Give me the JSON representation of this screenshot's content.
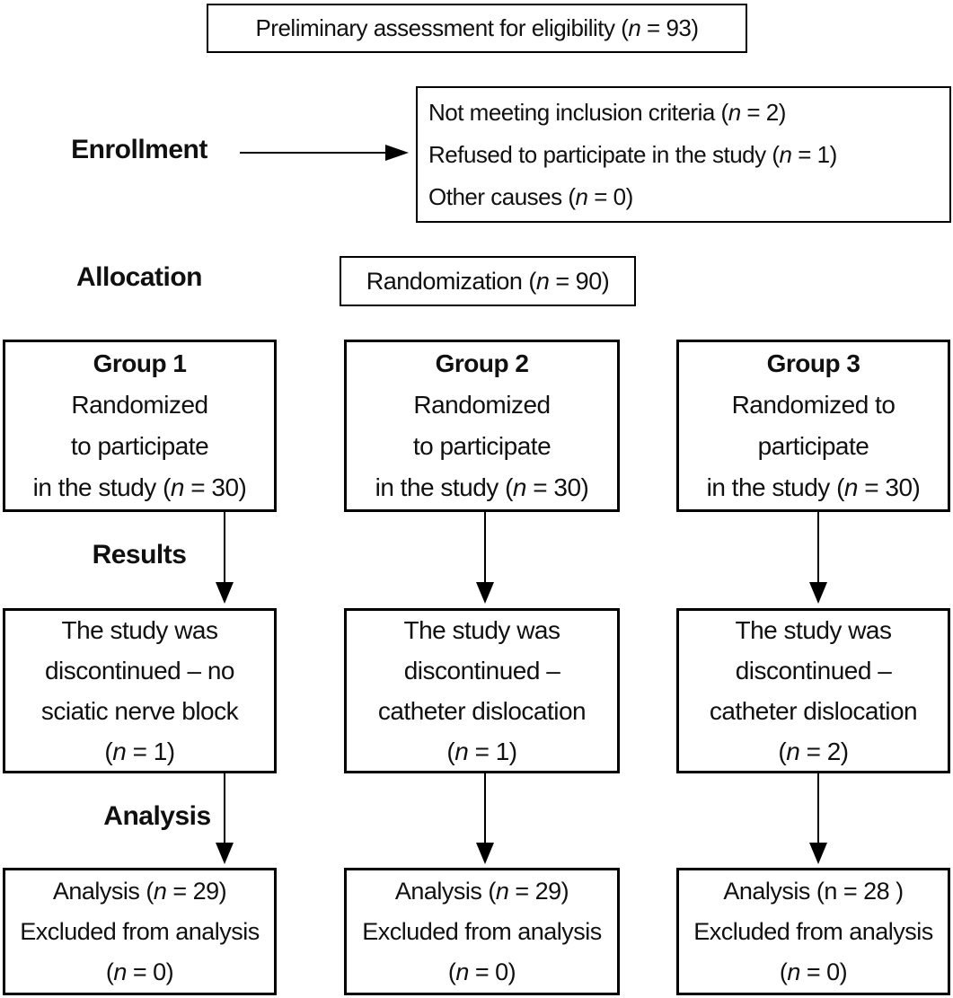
{
  "flowchart": {
    "stage_labels": {
      "enrollment": "Enrollment",
      "allocation": "Allocation",
      "results": "Results",
      "analysis": "Analysis"
    },
    "eligibility_box": {
      "lines": [
        [
          {
            "t": "Preliminary assessment for eligibility ("
          },
          {
            "t": "n",
            "i": true
          },
          {
            "t": " = 93)"
          }
        ]
      ]
    },
    "exclusion_box": {
      "lines": [
        [
          {
            "t": "Not meeting inclusion criteria ("
          },
          {
            "t": "n",
            "i": true
          },
          {
            "t": " = 2)"
          }
        ],
        [
          {
            "t": "Refused to participate in the study ("
          },
          {
            "t": "n",
            "i": true
          },
          {
            "t": " = 1)"
          }
        ],
        [
          {
            "t": "Other causes ("
          },
          {
            "t": "n",
            "i": true
          },
          {
            "t": " = 0)"
          }
        ]
      ]
    },
    "randomization_box": {
      "lines": [
        [
          {
            "t": "Randomization ("
          },
          {
            "t": "n",
            "i": true
          },
          {
            "t": " = 90)"
          }
        ]
      ]
    },
    "group_boxes": [
      {
        "lines": [
          [
            {
              "t": "Group 1",
              "b": true
            }
          ],
          [
            {
              "t": "Randomized"
            }
          ],
          [
            {
              "t": "to participate"
            }
          ],
          [
            {
              "t": "in the study ("
            },
            {
              "t": "n",
              "i": true
            },
            {
              "t": " = 30)"
            }
          ]
        ]
      },
      {
        "lines": [
          [
            {
              "t": "Group 2",
              "b": true
            }
          ],
          [
            {
              "t": "Randomized"
            }
          ],
          [
            {
              "t": "to participate"
            }
          ],
          [
            {
              "t": "in the study ("
            },
            {
              "t": "n",
              "i": true
            },
            {
              "t": " = 30)"
            }
          ]
        ]
      },
      {
        "lines": [
          [
            {
              "t": "Group 3",
              "b": true
            }
          ],
          [
            {
              "t": "Randomized to"
            }
          ],
          [
            {
              "t": "participate"
            }
          ],
          [
            {
              "t": "in the study ("
            },
            {
              "t": "n",
              "i": true
            },
            {
              "t": " = 30)"
            }
          ]
        ]
      }
    ],
    "result_boxes": [
      {
        "lines": [
          [
            {
              "t": "The study was"
            }
          ],
          [
            {
              "t": "discontinued – no"
            }
          ],
          [
            {
              "t": "sciatic nerve block"
            }
          ],
          [
            {
              "t": "("
            },
            {
              "t": "n",
              "i": true
            },
            {
              "t": " = 1)"
            }
          ]
        ]
      },
      {
        "lines": [
          [
            {
              "t": "The study was"
            }
          ],
          [
            {
              "t": "discontinued –"
            }
          ],
          [
            {
              "t": "catheter dislocation"
            }
          ],
          [
            {
              "t": "("
            },
            {
              "t": "n",
              "i": true
            },
            {
              "t": " = 1)"
            }
          ]
        ]
      },
      {
        "lines": [
          [
            {
              "t": "The study was"
            }
          ],
          [
            {
              "t": "discontinued –"
            }
          ],
          [
            {
              "t": "catheter dislocation"
            }
          ],
          [
            {
              "t": "("
            },
            {
              "t": "n",
              "i": true
            },
            {
              "t": " = 2)"
            }
          ]
        ]
      }
    ],
    "analysis_boxes": [
      {
        "lines": [
          [
            {
              "t": "Analysis ("
            },
            {
              "t": "n",
              "i": true
            },
            {
              "t": " = 29)"
            }
          ],
          [
            {
              "t": "Excluded from analysis"
            }
          ],
          [
            {
              "t": "("
            },
            {
              "t": "n",
              "i": true
            },
            {
              "t": " = 0)"
            }
          ]
        ]
      },
      {
        "lines": [
          [
            {
              "t": "Analysis ("
            },
            {
              "t": "n",
              "i": true
            },
            {
              "t": " = 29)"
            }
          ],
          [
            {
              "t": "Excluded from analysis"
            }
          ],
          [
            {
              "t": "("
            },
            {
              "t": "n",
              "i": true
            },
            {
              "t": " = 0)"
            }
          ]
        ]
      },
      {
        "lines": [
          [
            {
              "t": "Analysis (n = 28 )"
            }
          ],
          [
            {
              "t": "Excluded from analysis"
            }
          ],
          [
            {
              "t": "("
            },
            {
              "t": "n",
              "i": true
            },
            {
              "t": " = 0)"
            }
          ]
        ]
      }
    ],
    "colors": {
      "line": "#000000",
      "background": "#ffffff",
      "text": "#101010"
    }
  }
}
